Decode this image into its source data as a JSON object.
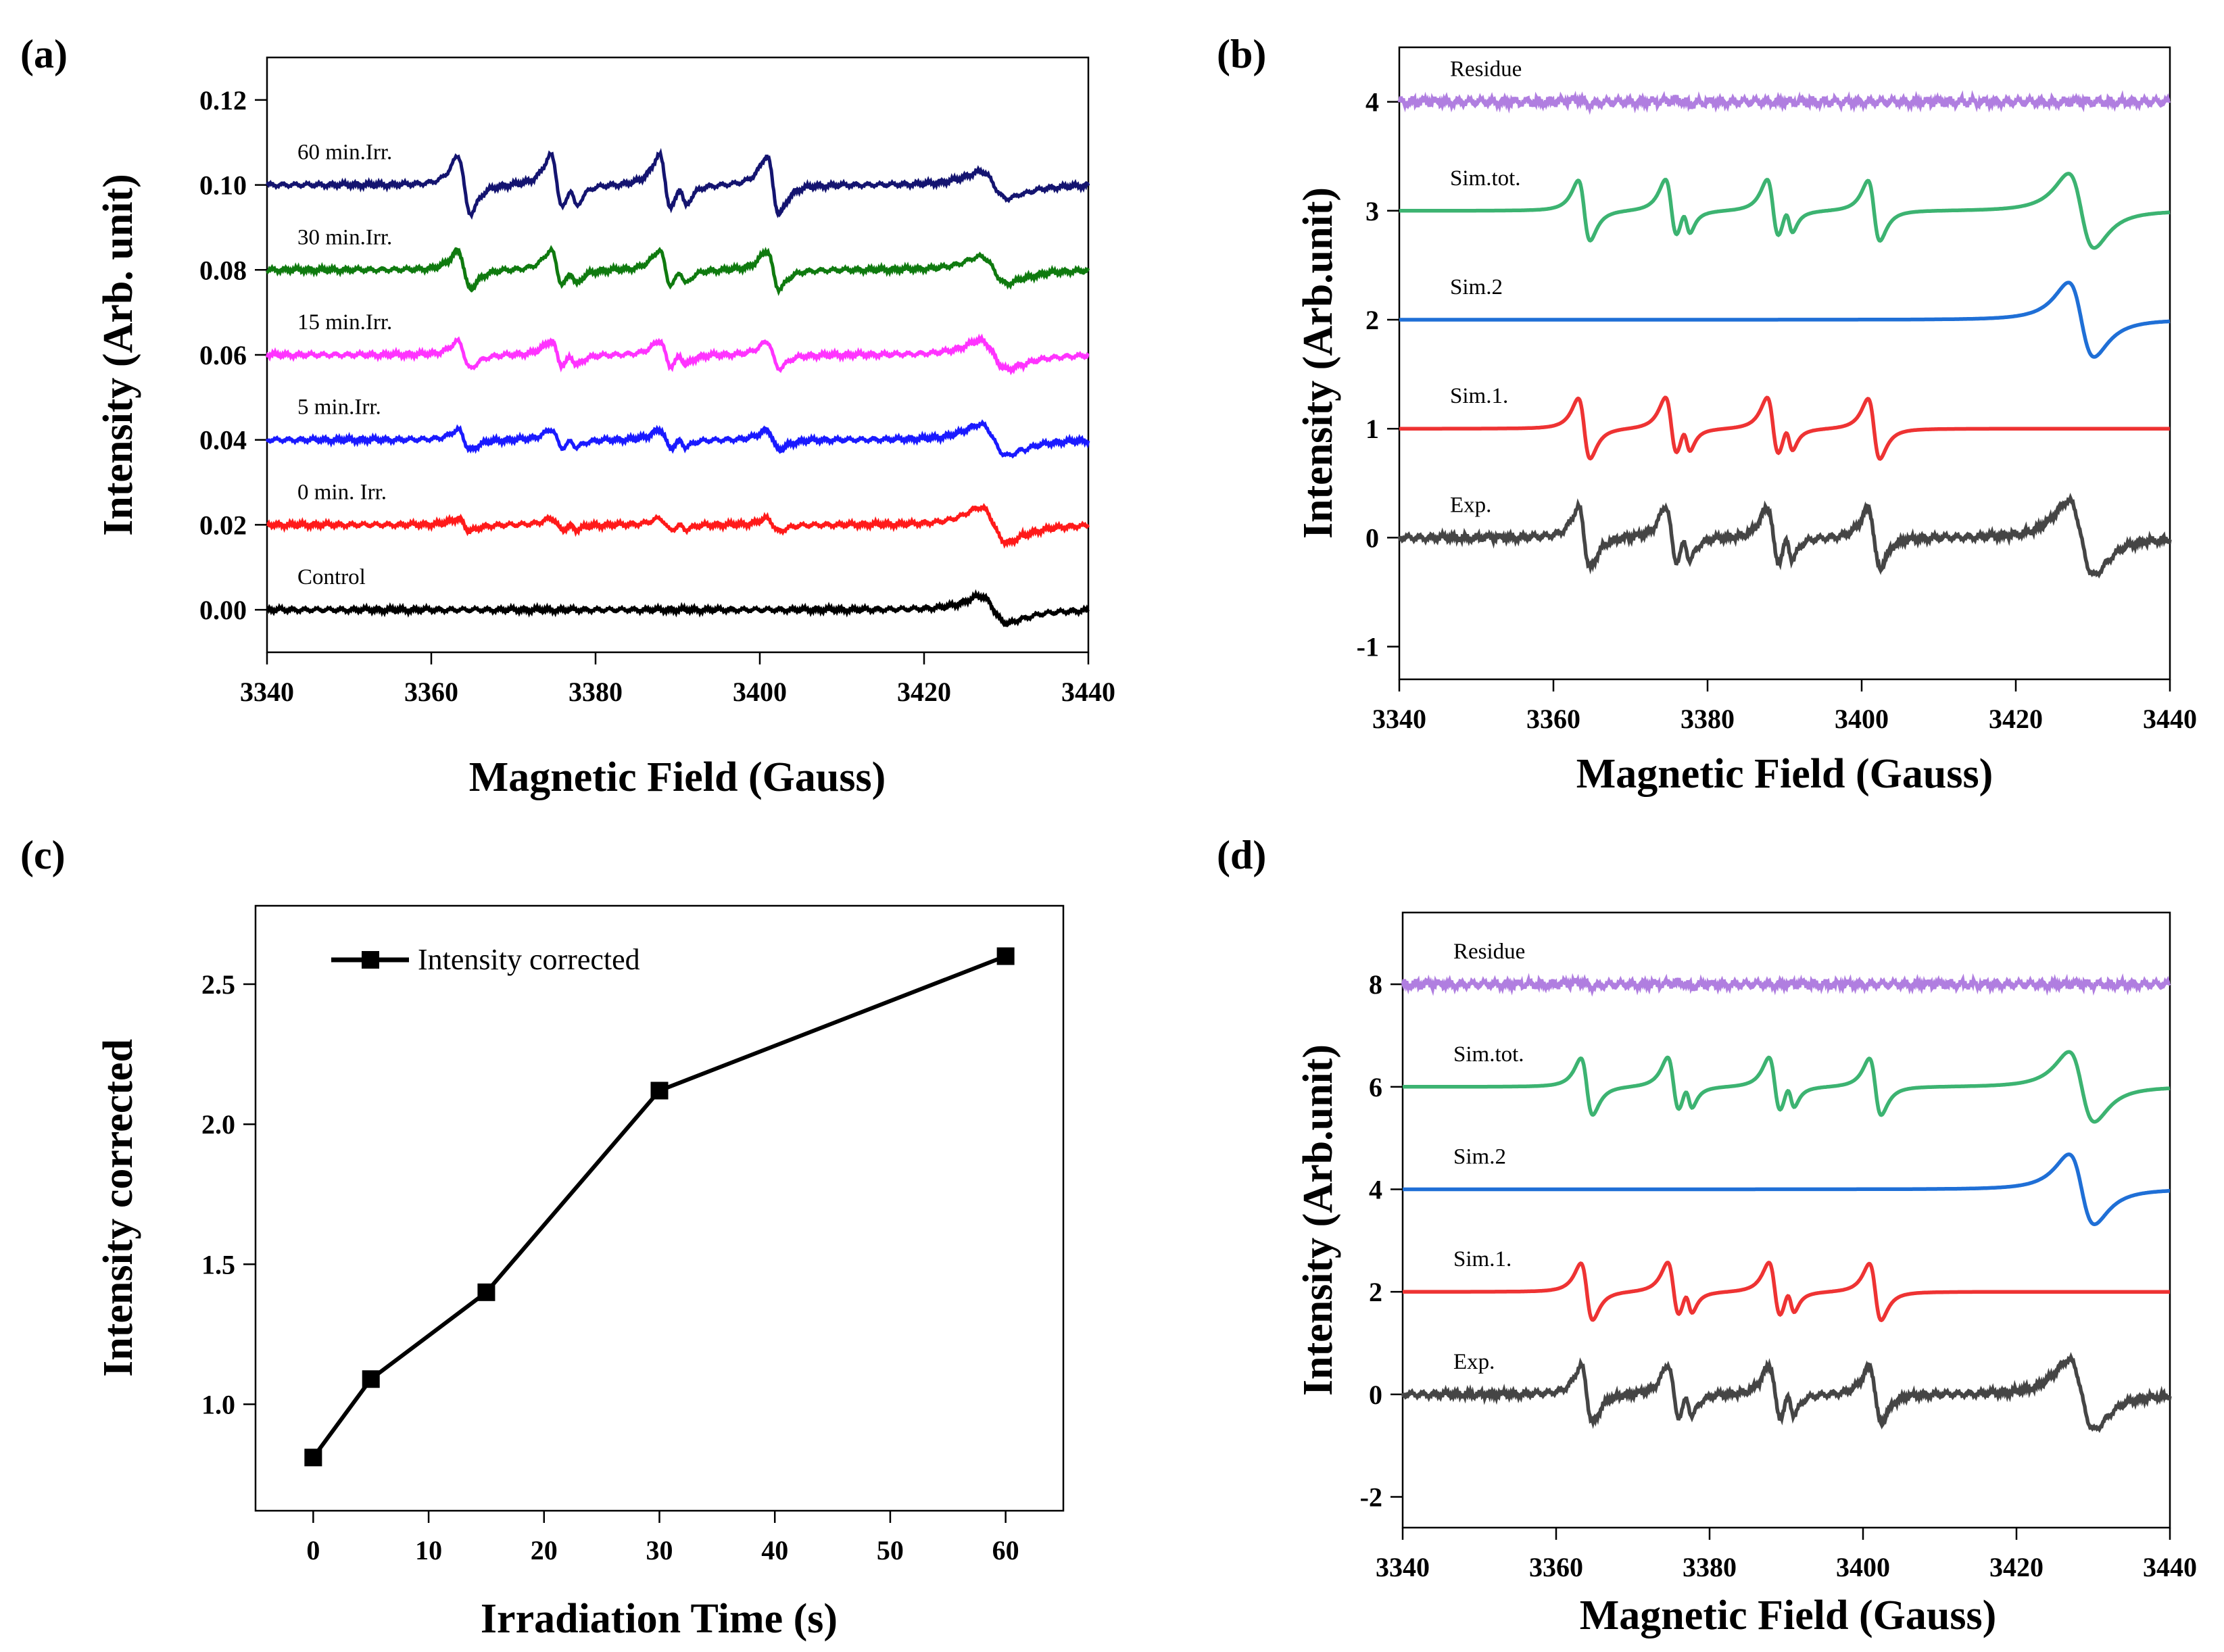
{
  "figure": {
    "panels": [
      "(a)",
      "(b)",
      "(c)",
      "(d)"
    ]
  },
  "chart_data": [
    {
      "id": "a",
      "type": "line",
      "panel_label": "(a)",
      "xlabel": "Magnetic Field (Gauss)",
      "ylabel": "Intensity (Arb. unit)",
      "xlim": [
        3340,
        3440
      ],
      "ylim": [
        -0.01,
        0.13
      ],
      "xticks": [
        3340,
        3360,
        3380,
        3400,
        3420,
        3440
      ],
      "yticks": [
        0.0,
        0.02,
        0.04,
        0.06,
        0.08,
        0.1,
        0.12
      ],
      "ytick_labels": [
        "0.00",
        "0.02",
        "0.04",
        "0.06",
        "0.08",
        "0.10",
        "0.12"
      ],
      "series": [
        {
          "name": "Control",
          "color": "#000000",
          "offset": 0.0,
          "scale": 0.0,
          "broad": 0.0065
        },
        {
          "name": "0 min. Irr.",
          "color": "#ff1a1a",
          "offset": 0.02,
          "scale": 0.0035,
          "broad": 0.0085
        },
        {
          "name": "5 min.Irr.",
          "color": "#1a1aff",
          "offset": 0.04,
          "scale": 0.0055,
          "broad": 0.0075
        },
        {
          "name": "15 min.Irr.",
          "color": "#ff33ff",
          "offset": 0.06,
          "scale": 0.0075,
          "broad": 0.007
        },
        {
          "name": "30 min.Irr.",
          "color": "#0f7a0f",
          "offset": 0.08,
          "scale": 0.0105,
          "broad": 0.0065
        },
        {
          "name": "60 min.Irr.",
          "color": "#141470",
          "offset": 0.1,
          "scale": 0.016,
          "broad": 0.0065
        }
      ]
    },
    {
      "id": "b",
      "type": "line",
      "panel_label": "(b)",
      "xlabel": "Magnetic Field (Gauss)",
      "ylabel": "Intensity (Arb.unit)",
      "xlim": [
        3340,
        3440
      ],
      "ylim": [
        -1.3,
        4.5
      ],
      "xticks": [
        3340,
        3360,
        3380,
        3400,
        3420,
        3440
      ],
      "yticks": [
        -1,
        0,
        1,
        2,
        3,
        4
      ],
      "ytick_labels": [
        "-1",
        "0",
        "1",
        "2",
        "3",
        "4"
      ],
      "series": [
        {
          "name": "Exp.",
          "color": "#454545",
          "offset": 0,
          "kind": "exp"
        },
        {
          "name": "Sim.1.",
          "color": "#ee3333",
          "offset": 1,
          "kind": "sim1"
        },
        {
          "name": "Sim.2",
          "color": "#1f6fd6",
          "offset": 2,
          "kind": "sim2"
        },
        {
          "name": "Sim.tot.",
          "color": "#3cb371",
          "offset": 3,
          "kind": "tot"
        },
        {
          "name": "Residue",
          "color": "#b07ee0",
          "offset": 4,
          "kind": "res"
        }
      ]
    },
    {
      "id": "c",
      "type": "line",
      "panel_label": "(c)",
      "xlabel": "Irradiation Time (s)",
      "ylabel": "Intensity corrected",
      "xlim": [
        -5,
        65
      ],
      "ylim": [
        0.62,
        2.78
      ],
      "xticks": [
        0,
        10,
        20,
        30,
        40,
        50,
        60
      ],
      "yticks": [
        1.0,
        1.5,
        2.0,
        2.5
      ],
      "ytick_labels": [
        "1.0",
        "1.5",
        "2.0",
        "2.5"
      ],
      "legend": "Intensity corrected",
      "legend_position": "top-left",
      "x": [
        0,
        5,
        15,
        30,
        60
      ],
      "y": [
        0.81,
        1.09,
        1.4,
        2.12,
        2.6
      ]
    },
    {
      "id": "d",
      "type": "line",
      "panel_label": "(d)",
      "xlabel": "Magnetic Field (Gauss)",
      "ylabel": "Intensity (Arb.unit)",
      "xlim": [
        3340,
        3440
      ],
      "ylim": [
        -2.6,
        9.4
      ],
      "xticks": [
        3340,
        3360,
        3380,
        3400,
        3420,
        3440
      ],
      "yticks": [
        -2,
        0,
        2,
        4,
        6,
        8
      ],
      "ytick_labels": [
        "-2",
        "0",
        "2",
        "4",
        "6",
        "8"
      ],
      "series": [
        {
          "name": "Exp.",
          "color": "#454545",
          "offset": 0,
          "kind": "exp"
        },
        {
          "name": "Sim.1.",
          "color": "#ee3333",
          "offset": 2,
          "kind": "sim1"
        },
        {
          "name": "Sim.2",
          "color": "#1f6fd6",
          "offset": 4,
          "kind": "sim2"
        },
        {
          "name": "Sim.tot.",
          "color": "#3cb371",
          "offset": 6,
          "kind": "tot"
        },
        {
          "name": "Residue",
          "color": "#b07ee0",
          "offset": 8,
          "kind": "res"
        }
      ]
    }
  ]
}
